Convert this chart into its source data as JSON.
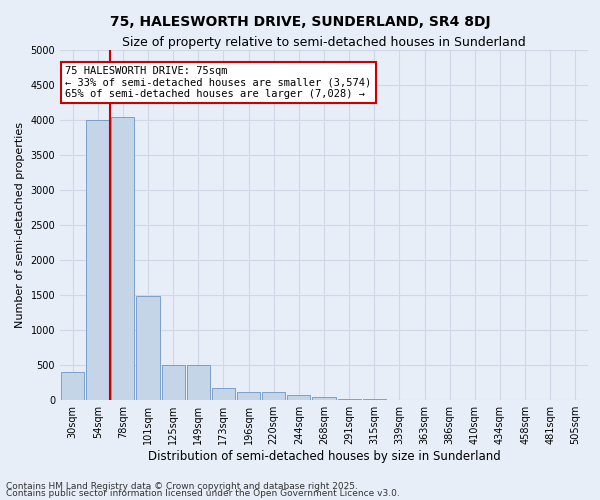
{
  "title": "75, HALESWORTH DRIVE, SUNDERLAND, SR4 8DJ",
  "subtitle": "Size of property relative to semi-detached houses in Sunderland",
  "xlabel": "Distribution of semi-detached houses by size in Sunderland",
  "ylabel": "Number of semi-detached properties",
  "categories": [
    "30sqm",
    "54sqm",
    "78sqm",
    "101sqm",
    "125sqm",
    "149sqm",
    "173sqm",
    "196sqm",
    "220sqm",
    "244sqm",
    "268sqm",
    "291sqm",
    "315sqm",
    "339sqm",
    "363sqm",
    "386sqm",
    "410sqm",
    "434sqm",
    "458sqm",
    "481sqm",
    "505sqm"
  ],
  "values": [
    400,
    4000,
    4050,
    1490,
    500,
    500,
    175,
    120,
    110,
    70,
    50,
    20,
    10,
    5,
    5,
    3,
    2,
    2,
    1,
    1,
    0
  ],
  "bar_color": "#c5d5e8",
  "bar_edge_color": "#6a96c8",
  "grid_color": "#d0d8e8",
  "background_color": "#e8eef8",
  "red_line_color": "#cc0000",
  "red_line_x": 1.5,
  "annotation_text1": "75 HALESWORTH DRIVE: 75sqm",
  "annotation_text2": "← 33% of semi-detached houses are smaller (3,574)",
  "annotation_text3": "65% of semi-detached houses are larger (7,028) →",
  "annotation_box_facecolor": "#ffffff",
  "annotation_box_edgecolor": "#cc0000",
  "ylim": [
    0,
    5000
  ],
  "yticks": [
    0,
    500,
    1000,
    1500,
    2000,
    2500,
    3000,
    3500,
    4000,
    4500,
    5000
  ],
  "title_fontsize": 10,
  "subtitle_fontsize": 9,
  "xlabel_fontsize": 8.5,
  "ylabel_fontsize": 8,
  "tick_fontsize": 7,
  "annotation_fontsize": 7.5,
  "footer_fontsize": 6.5,
  "footer1": "Contains HM Land Registry data © Crown copyright and database right 2025.",
  "footer2": "Contains public sector information licensed under the Open Government Licence v3.0."
}
